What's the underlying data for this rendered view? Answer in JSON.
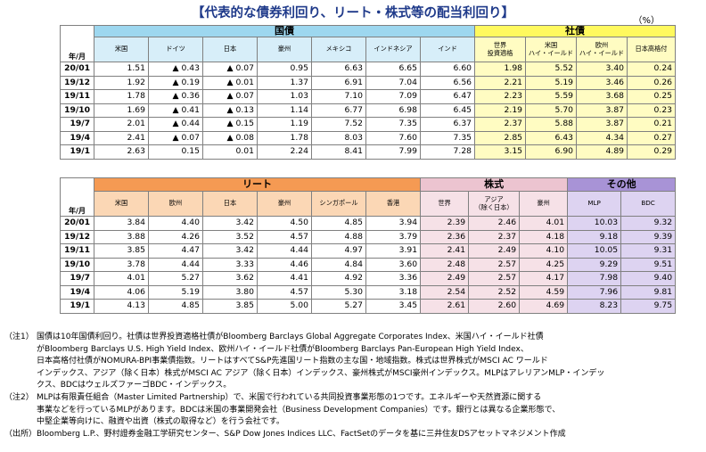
{
  "title": "【代表的な債券利回り、リート・株式等の配当利回り】",
  "unit": "（%）",
  "corner_label": "年/月",
  "chart_data": [
    {
      "type": "table",
      "groups": [
        "国債",
        "社債"
      ],
      "columns": [
        "米国",
        "ドイツ",
        "日本",
        "豪州",
        "メキシコ",
        "インドネシア",
        "インド",
        "世界\n投資適格",
        "米国\nハイ・イールド",
        "欧州\nハイ・イールド",
        "日本高格付"
      ],
      "rows": [
        {
          "label": "20/01",
          "values": [
            "1.51",
            "▲ 0.43",
            "▲ 0.07",
            "0.95",
            "6.63",
            "6.65",
            "6.60",
            "1.98",
            "5.52",
            "3.40",
            "0.24"
          ]
        },
        {
          "label": "19/12",
          "values": [
            "1.92",
            "▲ 0.19",
            "▲ 0.01",
            "1.37",
            "6.91",
            "7.04",
            "6.56",
            "2.21",
            "5.19",
            "3.46",
            "0.26"
          ]
        },
        {
          "label": "19/11",
          "values": [
            "1.78",
            "▲ 0.36",
            "▲ 0.07",
            "1.03",
            "7.10",
            "7.09",
            "6.47",
            "2.23",
            "5.59",
            "3.68",
            "0.25"
          ]
        },
        {
          "label": "19/10",
          "values": [
            "1.69",
            "▲ 0.41",
            "▲ 0.13",
            "1.14",
            "6.77",
            "6.98",
            "6.45",
            "2.19",
            "5.70",
            "3.87",
            "0.23"
          ]
        },
        {
          "label": "19/7",
          "values": [
            "2.01",
            "▲ 0.44",
            "▲ 0.15",
            "1.19",
            "7.52",
            "7.35",
            "6.37",
            "2.37",
            "5.88",
            "3.87",
            "0.21"
          ]
        },
        {
          "label": "19/4",
          "values": [
            "2.41",
            "▲ 0.07",
            "▲ 0.08",
            "1.78",
            "8.03",
            "7.60",
            "7.35",
            "2.85",
            "6.43",
            "4.34",
            "0.27"
          ]
        },
        {
          "label": "19/1",
          "values": [
            "2.63",
            "0.15",
            "0.01",
            "2.24",
            "8.41",
            "7.99",
            "7.28",
            "3.15",
            "6.90",
            "4.89",
            "0.29"
          ]
        }
      ]
    },
    {
      "type": "table",
      "groups": [
        "リート",
        "株式",
        "その他"
      ],
      "columns": [
        "米国",
        "欧州",
        "日本",
        "豪州",
        "シンガポール",
        "香港",
        "世界",
        "アジア\n（除く日本）",
        "豪州",
        "MLP",
        "BDC"
      ],
      "rows": [
        {
          "label": "20/01",
          "values": [
            "3.84",
            "4.40",
            "3.42",
            "4.50",
            "4.85",
            "3.94",
            "2.39",
            "2.46",
            "4.01",
            "10.03",
            "9.32"
          ]
        },
        {
          "label": "19/12",
          "values": [
            "3.88",
            "4.26",
            "3.52",
            "4.57",
            "4.88",
            "3.79",
            "2.36",
            "2.37",
            "4.18",
            "9.18",
            "9.39"
          ]
        },
        {
          "label": "19/11",
          "values": [
            "3.85",
            "4.47",
            "3.42",
            "4.44",
            "4.97",
            "3.91",
            "2.41",
            "2.49",
            "4.10",
            "10.05",
            "9.31"
          ]
        },
        {
          "label": "19/10",
          "values": [
            "3.78",
            "4.44",
            "3.33",
            "4.46",
            "4.84",
            "3.60",
            "2.48",
            "2.57",
            "4.25",
            "9.29",
            "9.51"
          ]
        },
        {
          "label": "19/7",
          "values": [
            "4.01",
            "5.27",
            "3.62",
            "4.41",
            "4.92",
            "3.36",
            "2.49",
            "2.57",
            "4.17",
            "7.98",
            "9.40"
          ]
        },
        {
          "label": "19/4",
          "values": [
            "4.06",
            "5.19",
            "3.80",
            "4.57",
            "5.30",
            "3.18",
            "2.54",
            "2.52",
            "4.59",
            "7.96",
            "9.81"
          ]
        },
        {
          "label": "19/1",
          "values": [
            "4.13",
            "4.85",
            "3.85",
            "5.00",
            "5.27",
            "3.45",
            "2.61",
            "2.60",
            "4.69",
            "8.23",
            "9.75"
          ]
        }
      ]
    }
  ],
  "notes": [
    {
      "label": "（注1）",
      "lines": [
        "国債は10年国債利回り。社債は世界投資適格社債がBloomberg Barclays Global Aggregate Corporates Index、米国ハイ・イールド社債",
        "がBloomberg Barclays U.S. High Yield Index、欧州ハイ・イールド社債がBloomberg Barclays Pan-European High Yield Index、",
        "日本高格付社債がNOMURA-BPI事業債指数。リートはすべてS&P先進国リート指数の主な国・地域指数。株式は世界株式がMSCI AC ワールド",
        "インデックス、アジア（除く日本）株式がMSCI AC アジア（除く日本）インデックス、豪州株式がMSCI豪州インデックス。MLPはアレリアンMLP・インデッ",
        "クス、BDCはウェルズファーゴBDC・インデックス。"
      ]
    },
    {
      "label": "（注2）",
      "lines": [
        "MLPは有限責任組合（Master Limited Partnership）で、米国で行われている共同投資事業形態の1つです。エネルギーや天然資源に関する",
        "事業などを行っているMLPがあります。BDCは米国の事業開発会社（Business Development Companies）です。銀行とは異なる企業形態で、",
        "中堅企業等向けに、融資や出資（株式の取得など）を行う会社です。"
      ]
    },
    {
      "label": "（出所）",
      "lines": [
        "Bloomberg L.P.、野村證券金融工学研究センター、S&P Dow Jones Indices LLC、FactSetのデータを基に三井住友DSアセットマネジメント作成"
      ]
    }
  ]
}
